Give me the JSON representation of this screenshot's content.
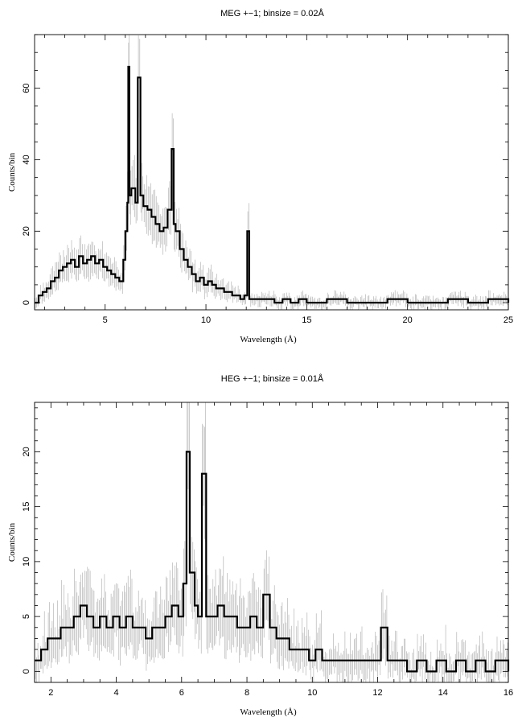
{
  "chart_data": [
    {
      "type": "line",
      "title": "MEG +−1; binsize = 0.02Å",
      "xlabel": "Wavelength (Å)",
      "ylabel": "Counts/bin",
      "xlim": [
        1.5,
        25
      ],
      "ylim": [
        -2,
        75
      ],
      "xticks": [
        5,
        10,
        15,
        20,
        25
      ],
      "yticks": [
        0,
        20,
        40,
        60
      ],
      "grid": false,
      "series": [
        {
          "style": "histogram-step",
          "color": "#000000",
          "errorbar_color": "#aaaaaa",
          "x": [
            1.5,
            1.7,
            1.9,
            2.1,
            2.3,
            2.5,
            2.7,
            2.9,
            3.1,
            3.3,
            3.5,
            3.7,
            3.9,
            4.1,
            4.3,
            4.5,
            4.7,
            4.9,
            5.1,
            5.3,
            5.5,
            5.7,
            5.9,
            6.0,
            6.1,
            6.15,
            6.2,
            6.3,
            6.5,
            6.62,
            6.75,
            6.9,
            7.1,
            7.3,
            7.5,
            7.7,
            7.9,
            8.1,
            8.3,
            8.4,
            8.5,
            8.7,
            8.9,
            9.1,
            9.3,
            9.5,
            9.7,
            9.9,
            10.1,
            10.3,
            10.5,
            10.7,
            10.9,
            11.1,
            11.3,
            11.5,
            11.7,
            11.9,
            12.05,
            12.15,
            12.3,
            12.5,
            12.8,
            13.1,
            13.4,
            13.8,
            14.2,
            14.6,
            15.0,
            15.5,
            16.0,
            17.0,
            18.0,
            19.0,
            20.0,
            21.0,
            22.0,
            23.0,
            24.0,
            25.0
          ],
          "y": [
            0,
            2,
            3,
            4,
            6,
            7,
            9,
            10,
            11,
            12,
            10,
            13,
            11,
            12,
            13,
            11,
            12,
            10,
            9,
            8,
            7,
            6,
            12,
            20,
            28,
            66,
            30,
            32,
            28,
            63,
            30,
            27,
            26,
            24,
            22,
            20,
            21,
            26,
            43,
            22,
            20,
            15,
            12,
            10,
            8,
            6,
            7,
            5,
            6,
            5,
            4,
            4,
            3,
            3,
            2,
            2,
            1,
            2,
            20,
            1,
            1,
            1,
            1,
            1,
            0,
            1,
            0,
            1,
            0,
            0,
            1,
            0,
            0,
            1,
            0,
            0,
            1,
            0,
            1,
            0
          ]
        }
      ]
    },
    {
      "type": "line",
      "title": "HEG +−1; binsize = 0.01Å",
      "xlabel": "Wavelength (Å)",
      "ylabel": "Counts/bin",
      "xlim": [
        1.5,
        16
      ],
      "ylim": [
        -1,
        24.5
      ],
      "xticks": [
        2,
        4,
        6,
        8,
        10,
        12,
        14,
        16
      ],
      "yticks": [
        0,
        5,
        10,
        15,
        20
      ],
      "grid": false,
      "series": [
        {
          "style": "histogram-step",
          "color": "#000000",
          "errorbar_color": "#aaaaaa",
          "x": [
            1.5,
            1.7,
            1.9,
            2.1,
            2.3,
            2.5,
            2.7,
            2.9,
            3.1,
            3.3,
            3.5,
            3.7,
            3.9,
            4.1,
            4.3,
            4.5,
            4.7,
            4.9,
            5.1,
            5.3,
            5.5,
            5.7,
            5.9,
            6.05,
            6.15,
            6.25,
            6.4,
            6.5,
            6.62,
            6.75,
            6.9,
            7.1,
            7.3,
            7.5,
            7.7,
            7.9,
            8.1,
            8.3,
            8.5,
            8.7,
            8.9,
            9.1,
            9.3,
            9.5,
            9.7,
            9.9,
            10.1,
            10.3,
            10.5,
            10.7,
            10.9,
            11.1,
            11.3,
            11.5,
            11.7,
            11.9,
            12.1,
            12.3,
            12.6,
            12.9,
            13.2,
            13.5,
            13.8,
            14.1,
            14.4,
            14.7,
            15.0,
            15.3,
            15.6,
            16.0
          ],
          "y": [
            1,
            2,
            3,
            3,
            4,
            4,
            5,
            6,
            5,
            4,
            5,
            4,
            5,
            4,
            5,
            4,
            4,
            3,
            4,
            4,
            5,
            6,
            5,
            8,
            20,
            9,
            6,
            5,
            18,
            5,
            5,
            6,
            5,
            5,
            4,
            4,
            5,
            4,
            7,
            4,
            3,
            3,
            2,
            2,
            2,
            1,
            2,
            1,
            1,
            1,
            1,
            1,
            1,
            1,
            1,
            1,
            4,
            1,
            1,
            0,
            1,
            0,
            1,
            0,
            1,
            0,
            1,
            0,
            1,
            0
          ]
        }
      ]
    }
  ]
}
